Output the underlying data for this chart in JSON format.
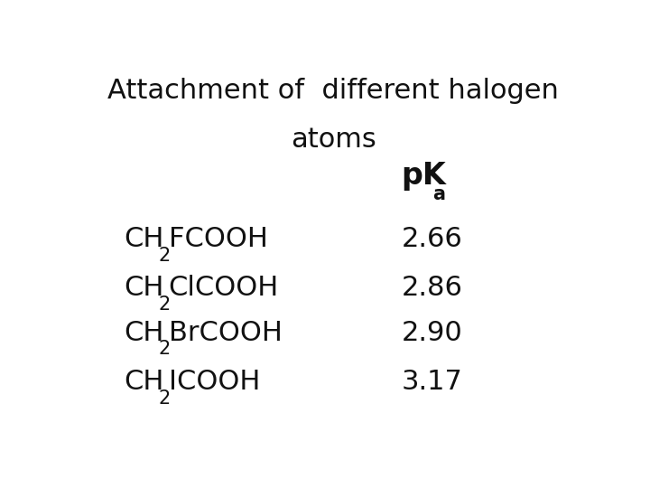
{
  "title_line1": "Attachment of  different halogen",
  "title_line2": "atoms",
  "header_pK": "pK",
  "header_sub": "a",
  "compounds": [
    {
      "formula_main": "CH",
      "sub": "2",
      "formula_rest": "FCOOH",
      "pka": "2.66"
    },
    {
      "formula_main": "CH",
      "sub": "2",
      "formula_rest": "ClCOOH",
      "pka": "2.86"
    },
    {
      "formula_main": "CH",
      "sub": "2",
      "formula_rest": "BrCOOH",
      "pka": "2.90"
    },
    {
      "formula_main": "CH",
      "sub": "2",
      "formula_rest": "ICOOH",
      "pka": "3.17"
    }
  ],
  "bg_color": "#ffffff",
  "text_color": "#111111",
  "title_fontsize": 22,
  "body_fontsize": 22,
  "header_fontsize": 22,
  "sub_fontsize": 15
}
